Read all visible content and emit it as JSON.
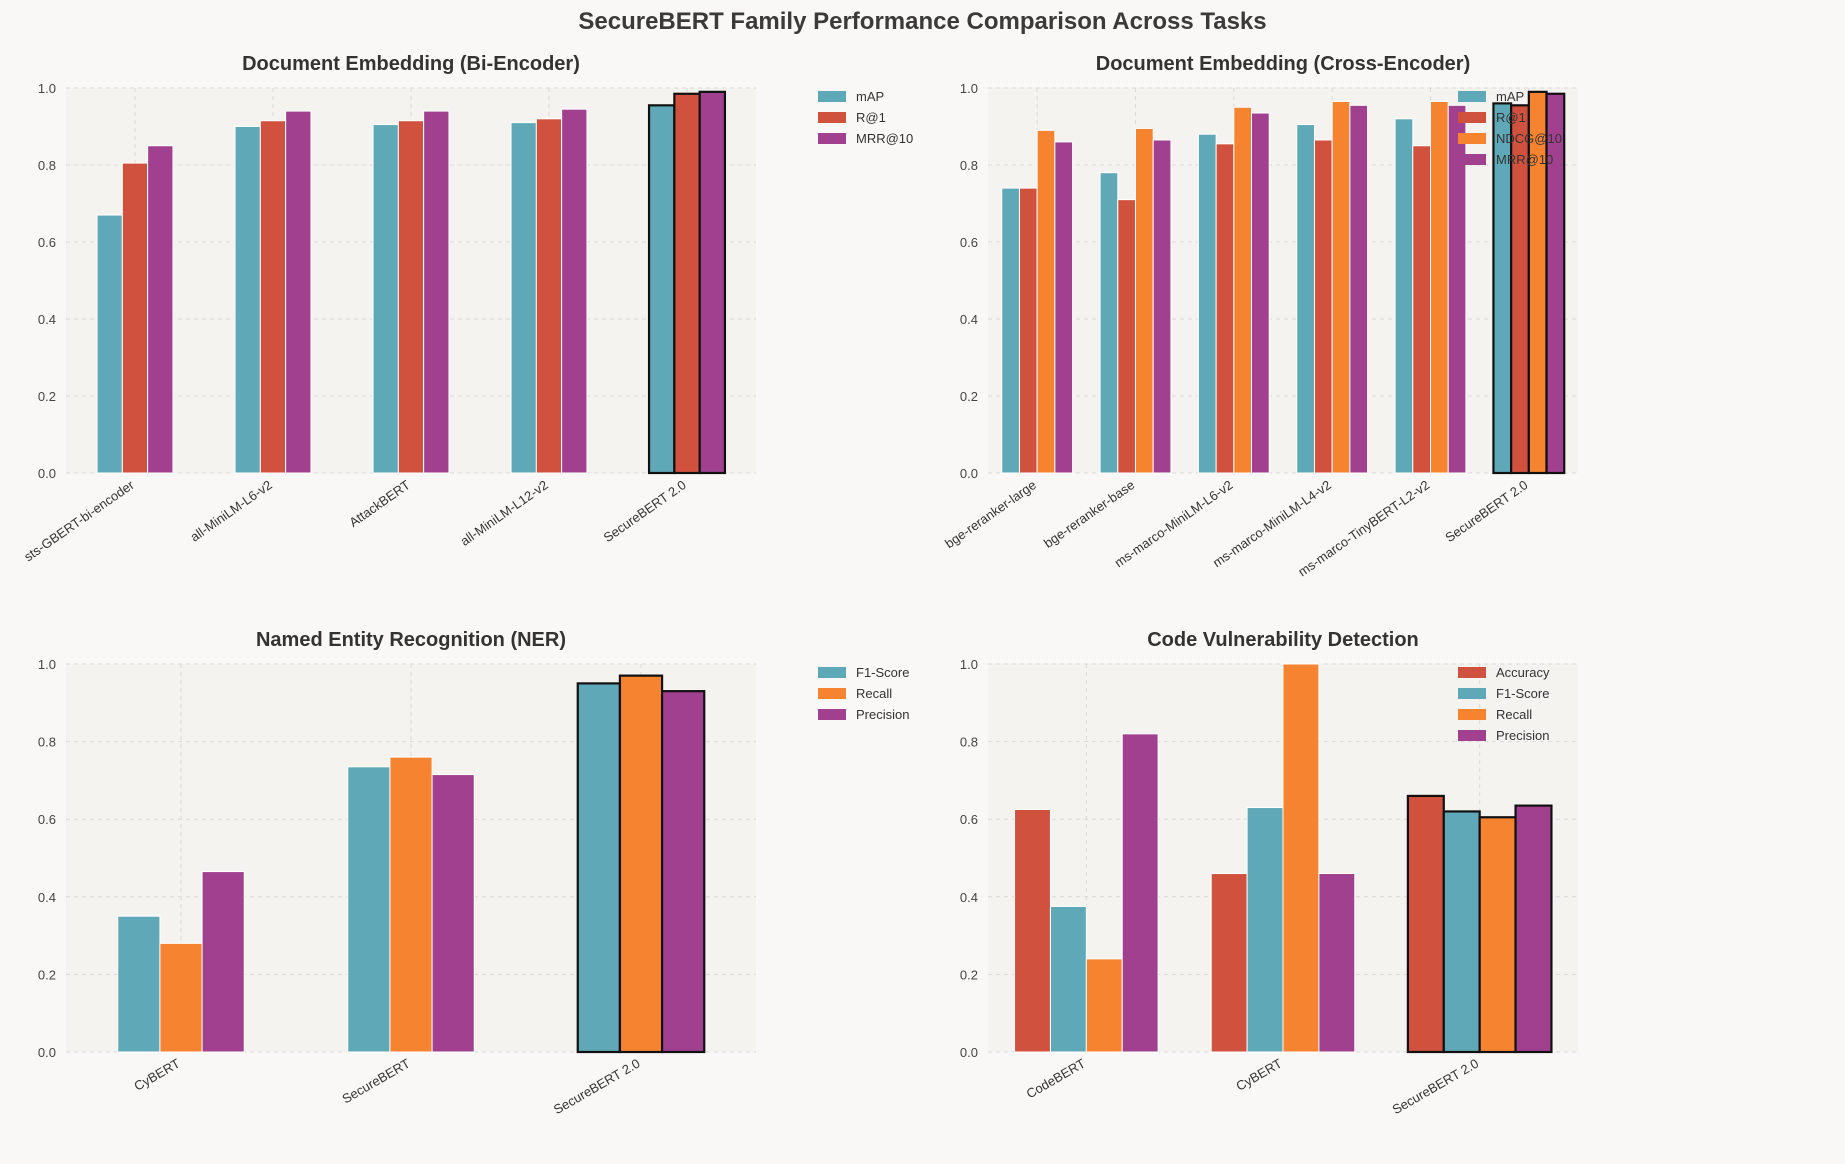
{
  "figure": {
    "suptitle": "SecureBERT Family Performance Comparison Across Tasks",
    "colors": {
      "teal": "#5fa8b7",
      "red": "#d0523e",
      "purple": "#a0408f",
      "orange": "#f5832f",
      "panel_bg": "#f5f3f0",
      "page_bg": "#f9f8f6",
      "grid": "#dcdad6"
    }
  },
  "chart_data": [
    {
      "type": "bar",
      "title": "Document Embedding (Bi-Encoder)",
      "categories": [
        "sts-GBERT-bi-encoder",
        "all-MiniLM-L6-v2",
        "AttackBERT",
        "all-MiniLM-L12-v2",
        "SecureBERT 2.0"
      ],
      "highlight_category": "SecureBERT 2.0",
      "series": [
        {
          "name": "mAP",
          "color": "#5fa8b7",
          "values": [
            0.67,
            0.9,
            0.905,
            0.91,
            0.955
          ]
        },
        {
          "name": "R@1",
          "color": "#d0523e",
          "values": [
            0.805,
            0.915,
            0.915,
            0.92,
            0.985
          ]
        },
        {
          "name": "MRR@10",
          "color": "#a0408f",
          "values": [
            0.85,
            0.94,
            0.94,
            0.945,
            0.99
          ]
        }
      ],
      "ylim": [
        0,
        1.0
      ],
      "yticks": [
        "0.0",
        "0.2",
        "0.4",
        "0.6",
        "0.8",
        "1.0"
      ],
      "legend": "upper-right-outside",
      "grid": true
    },
    {
      "type": "bar",
      "title": "Document Embedding (Cross-Encoder)",
      "categories": [
        "bge-reranker-large",
        "bge-reranker-base",
        "ms-marco-MiniLM-L6-v2",
        "ms-marco-MiniLM-L4-v2",
        "ms-marco-TinyBERT-L2-v2",
        "SecureBERT 2.0"
      ],
      "highlight_category": "SecureBERT 2.0",
      "series": [
        {
          "name": "mAP",
          "color": "#5fa8b7",
          "values": [
            0.74,
            0.78,
            0.88,
            0.905,
            0.92,
            0.96
          ]
        },
        {
          "name": "R@1",
          "color": "#d0523e",
          "values": [
            0.74,
            0.71,
            0.855,
            0.865,
            0.85,
            0.955
          ]
        },
        {
          "name": "NDCG@10",
          "color": "#f5832f",
          "values": [
            0.89,
            0.895,
            0.95,
            0.965,
            0.965,
            0.99
          ]
        },
        {
          "name": "MRR@10",
          "color": "#a0408f",
          "values": [
            0.86,
            0.865,
            0.935,
            0.955,
            0.955,
            0.985
          ]
        }
      ],
      "ylim": [
        0,
        1.0
      ],
      "yticks": [
        "0.0",
        "0.2",
        "0.4",
        "0.6",
        "0.8",
        "1.0"
      ],
      "legend": "upper-right-outside",
      "grid": true
    },
    {
      "type": "bar",
      "title": "Named Entity Recognition (NER)",
      "categories": [
        "CyBERT",
        "SecureBERT",
        "SecureBERT 2.0"
      ],
      "highlight_category": "SecureBERT 2.0",
      "series": [
        {
          "name": "F1-Score",
          "color": "#5fa8b7",
          "values": [
            0.35,
            0.735,
            0.95
          ]
        },
        {
          "name": "Recall",
          "color": "#f5832f",
          "values": [
            0.28,
            0.76,
            0.97
          ]
        },
        {
          "name": "Precision",
          "color": "#a0408f",
          "values": [
            0.465,
            0.715,
            0.93
          ]
        }
      ],
      "ylim": [
        0,
        1.0
      ],
      "yticks": [
        "0.0",
        "0.2",
        "0.4",
        "0.6",
        "0.8",
        "1.0"
      ],
      "legend": "upper-right-outside",
      "grid": true
    },
    {
      "type": "bar",
      "title": "Code Vulnerability Detection",
      "categories": [
        "CodeBERT",
        "CyBERT",
        "SecureBERT 2.0"
      ],
      "highlight_category": "SecureBERT 2.0",
      "series": [
        {
          "name": "Accuracy",
          "color": "#d0523e",
          "values": [
            0.625,
            0.46,
            0.66
          ]
        },
        {
          "name": "F1-Score",
          "color": "#5fa8b7",
          "values": [
            0.375,
            0.63,
            0.62
          ]
        },
        {
          "name": "Recall",
          "color": "#f5832f",
          "values": [
            0.24,
            1.0,
            0.605
          ]
        },
        {
          "name": "Precision",
          "color": "#a0408f",
          "values": [
            0.82,
            0.46,
            0.635
          ]
        }
      ],
      "ylim": [
        0,
        1.0
      ],
      "yticks": [
        "0.0",
        "0.2",
        "0.4",
        "0.6",
        "0.8",
        "1.0"
      ],
      "legend": "upper-right-outside",
      "grid": true
    }
  ]
}
